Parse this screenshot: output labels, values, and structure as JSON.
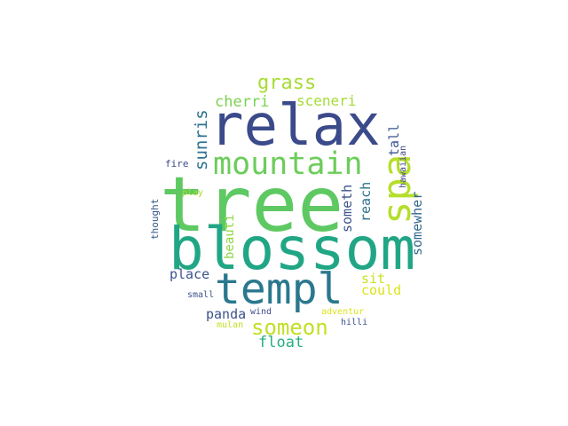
{
  "wordcloud": {
    "words": [
      {
        "key": "tree",
        "text": "tree",
        "color": "#5ec962",
        "orientation": "horizontal"
      },
      {
        "key": "blossom",
        "text": "blossom",
        "color": "#21a685",
        "orientation": "horizontal"
      },
      {
        "key": "relax",
        "text": "relax",
        "color": "#3b4a8a",
        "orientation": "horizontal"
      },
      {
        "key": "templ",
        "text": "templ",
        "color": "#2a788e",
        "orientation": "horizontal"
      },
      {
        "key": "mountain",
        "text": "mountain",
        "color": "#6ccd5a",
        "orientation": "horizontal"
      },
      {
        "key": "spa",
        "text": "spa",
        "color": "#b5de2b",
        "orientation": "vertical"
      },
      {
        "key": "someon",
        "text": "someon",
        "color": "#c2df23",
        "orientation": "horizontal"
      },
      {
        "key": "grass",
        "text": "grass",
        "color": "#a8db34",
        "orientation": "horizontal"
      },
      {
        "key": "cherri",
        "text": "cherri",
        "color": "#7ad151",
        "orientation": "horizontal"
      },
      {
        "key": "sceneri",
        "text": "sceneri",
        "color": "#a5db36",
        "orientation": "horizontal"
      },
      {
        "key": "sunris",
        "text": "sunris",
        "color": "#2c728e",
        "orientation": "vertical"
      },
      {
        "key": "tall",
        "text": "tall",
        "color": "#3a548c",
        "orientation": "vertical"
      },
      {
        "key": "hawaiian",
        "text": "hawaiian",
        "color": "#414487",
        "orientation": "vertical"
      },
      {
        "key": "fire",
        "text": "fire",
        "color": "#3e4989",
        "orientation": "horizontal"
      },
      {
        "key": "play",
        "text": "play",
        "color": "#addc30",
        "orientation": "horizontal"
      },
      {
        "key": "someth",
        "text": "someth",
        "color": "#3b528b",
        "orientation": "vertical"
      },
      {
        "key": "reach",
        "text": "reach",
        "color": "#2c728e",
        "orientation": "vertical"
      },
      {
        "key": "somewher",
        "text": "somewher",
        "color": "#31688e",
        "orientation": "vertical"
      },
      {
        "key": "beauti",
        "text": "beauti",
        "color": "#90d743",
        "orientation": "vertical"
      },
      {
        "key": "thought",
        "text": "thought",
        "color": "#39568c",
        "orientation": "vertical"
      },
      {
        "key": "place",
        "text": "place",
        "color": "#3b528b",
        "orientation": "horizontal"
      },
      {
        "key": "sit",
        "text": "sit",
        "color": "#c8e020",
        "orientation": "horizontal"
      },
      {
        "key": "could",
        "text": "could",
        "color": "#dde318",
        "orientation": "horizontal"
      },
      {
        "key": "small",
        "text": "small",
        "color": "#3b528b",
        "orientation": "horizontal"
      },
      {
        "key": "panda",
        "text": "panda",
        "color": "#3b528b",
        "orientation": "horizontal"
      },
      {
        "key": "wind",
        "text": "wind",
        "color": "#3e4a89",
        "orientation": "horizontal"
      },
      {
        "key": "adventur",
        "text": "adventur",
        "color": "#dde318",
        "orientation": "horizontal"
      },
      {
        "key": "mulan",
        "text": "mulan",
        "color": "#c2df23",
        "orientation": "horizontal"
      },
      {
        "key": "hilli",
        "text": "hilli",
        "color": "#3b528b",
        "orientation": "horizontal"
      },
      {
        "key": "float",
        "text": "float",
        "color": "#27ad81",
        "orientation": "horizontal"
      }
    ]
  }
}
